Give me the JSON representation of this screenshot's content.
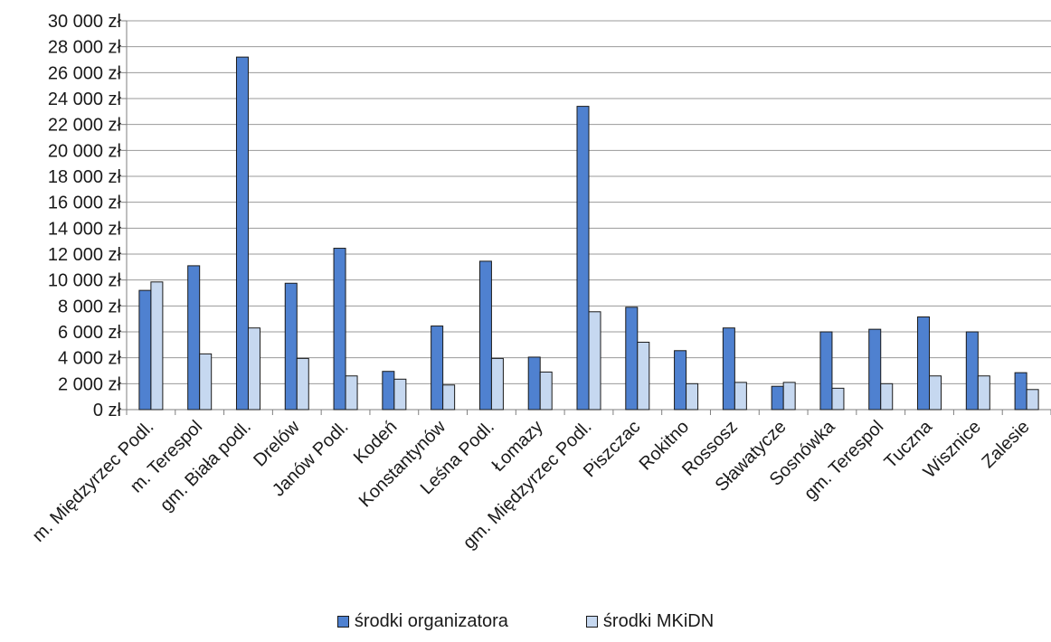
{
  "chart_data": {
    "type": "bar",
    "title": "",
    "xlabel": "",
    "ylabel": "",
    "ylim": [
      0,
      30000
    ],
    "yticks": [
      "0 zł",
      "2 000 zł",
      "4 000 zł",
      "6 000 zł",
      "8 000 zł",
      "10 000 zł",
      "12 000 zł",
      "14 000 zł",
      "16 000 zł",
      "18 000 zł",
      "20 000 zł",
      "22 000 zł",
      "24 000 zł",
      "26 000 zł",
      "28 000 zł",
      "30 000 zł"
    ],
    "grid": true,
    "legend_position": "bottom",
    "categories": [
      "m. Międzyrzec Podl.",
      "m. Terespol",
      "gm. Biała podl.",
      "Drelów",
      "Janów Podl.",
      "Kodeń",
      "Konstantynów",
      "Leśna Podl.",
      "Łomazy",
      "gm. Międzyrzec Podl.",
      "Piszczac",
      "Rokitno",
      "Rossosz",
      "Sławatycze",
      "Sosnówka",
      "gm. Terespol",
      "Tuczna",
      "Wisznice",
      "Zalesie"
    ],
    "series": [
      {
        "name": "środki organizatora",
        "color": "#4F81D0",
        "values": [
          9200,
          11100,
          27200,
          9750,
          12450,
          2950,
          6450,
          11450,
          4050,
          23400,
          7900,
          4550,
          6300,
          1800,
          6000,
          6200,
          7150,
          6000,
          2850
        ]
      },
      {
        "name": "środki MKiDN",
        "color": "#C6D8F0",
        "values": [
          9850,
          4300,
          6300,
          3950,
          2600,
          2350,
          1900,
          3950,
          2900,
          7550,
          5200,
          2000,
          2100,
          2100,
          1650,
          2000,
          2600,
          2600,
          1550
        ]
      }
    ]
  }
}
